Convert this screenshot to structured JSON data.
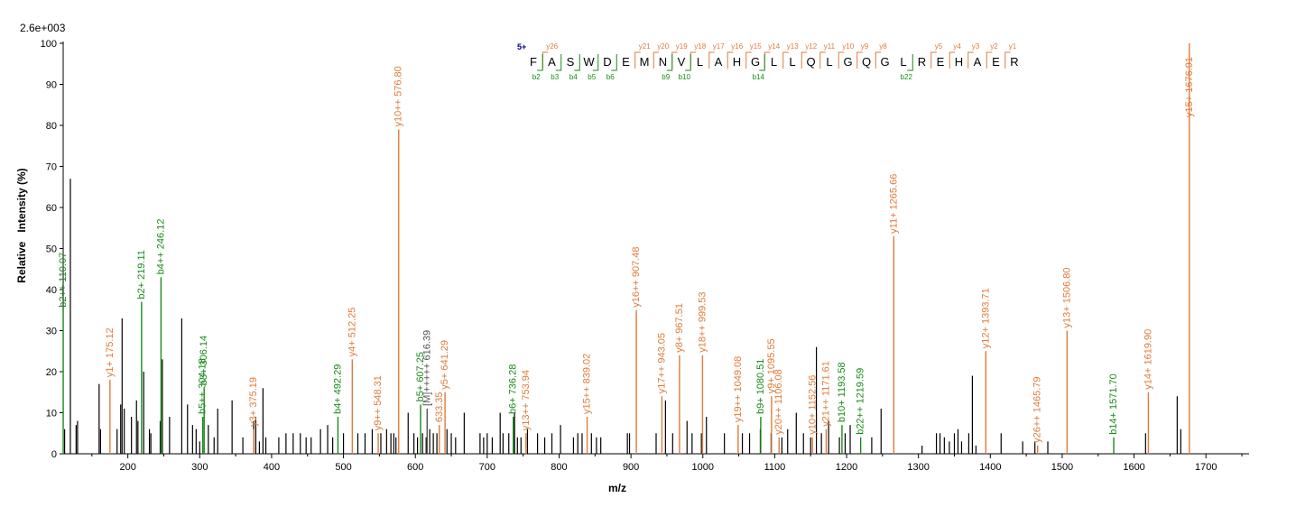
{
  "colors": {
    "y_ion": "#e07b39",
    "b_ion": "#1a8a1a",
    "unassigned": "#000000",
    "precursor": "#555555",
    "charge": "#000080"
  },
  "chart_data": {
    "type": "bar",
    "title": "",
    "scale_label": "2.6e+003",
    "xlabel": "m/z",
    "ylabel": "Relative   Intensity (%)",
    "xlim": [
      110,
      1760
    ],
    "ylim": [
      0,
      100
    ],
    "xticks": [
      200,
      300,
      400,
      500,
      600,
      700,
      800,
      900,
      1000,
      1100,
      1200,
      1300,
      1400,
      1500,
      1600,
      1700
    ],
    "yticks": [
      0,
      10,
      20,
      30,
      40,
      50,
      60,
      70,
      80,
      90,
      100
    ],
    "grid": false,
    "sequence": {
      "charge": "5+",
      "residues": [
        "F",
        "A",
        "S",
        "W",
        "D",
        "E",
        "M",
        "N",
        "V",
        "L",
        "A",
        "H",
        "G",
        "L",
        "L",
        "Q",
        "L",
        "G",
        "Q",
        "G",
        "L",
        "R",
        "E",
        "H",
        "A",
        "E",
        "R"
      ],
      "y_marks": [
        [
          "y26",
          1
        ],
        [
          "y21",
          6
        ],
        [
          "y20",
          7
        ],
        [
          "y19",
          8
        ],
        [
          "y18",
          9
        ],
        [
          "y17",
          10
        ],
        [
          "y16",
          11
        ],
        [
          "y15",
          12
        ],
        [
          "y14",
          13
        ],
        [
          "y13",
          14
        ],
        [
          "y12",
          15
        ],
        [
          "y11",
          16
        ],
        [
          "y10",
          17
        ],
        [
          "y9",
          18
        ],
        [
          "y8",
          19
        ],
        [
          "y5",
          22
        ],
        [
          "y4",
          23
        ],
        [
          "y3",
          24
        ],
        [
          "y2",
          25
        ],
        [
          "y1",
          26
        ]
      ],
      "b_marks": [
        [
          "b2",
          1
        ],
        [
          "b3",
          2
        ],
        [
          "b4",
          3
        ],
        [
          "b5",
          4
        ],
        [
          "b6",
          5
        ],
        [
          "b9",
          8
        ],
        [
          "b10",
          9
        ],
        [
          "b14",
          13
        ],
        [
          "b22",
          21
        ]
      ]
    },
    "labeled_peaks": [
      {
        "mz": 110.07,
        "y": 35,
        "ion": "b",
        "label": "b2++ 110.07"
      },
      {
        "mz": 175.12,
        "y": 18,
        "ion": "y",
        "label": "y1+ 175.12"
      },
      {
        "mz": 219.11,
        "y": 37,
        "ion": "b",
        "label": "b2+ 219.11"
      },
      {
        "mz": 246.12,
        "y": 43,
        "ion": "b",
        "label": "b4++ 246.12"
      },
      {
        "mz": 304.18,
        "y": 9,
        "ion": "b",
        "label": "b5++ 304.18"
      },
      {
        "mz": 306.14,
        "y": 16,
        "ion": "b",
        "label": "b3+ 306.14"
      },
      {
        "mz": 375.19,
        "y": 6,
        "ion": "y",
        "label": "y3+ 375.19"
      },
      {
        "mz": 492.29,
        "y": 9,
        "ion": "b",
        "label": "b4+ 492.29"
      },
      {
        "mz": 512.25,
        "y": 23,
        "ion": "y",
        "label": "y4+ 512.25"
      },
      {
        "mz": 548.31,
        "y": 5,
        "ion": "y",
        "label": "y9++ 548.31"
      },
      {
        "mz": 576.8,
        "y": 79,
        "ion": "y",
        "label": "y10++ 576.80"
      },
      {
        "mz": 607.25,
        "y": 12,
        "ion": "b",
        "label": "b5+ 607.25"
      },
      {
        "mz": 616.39,
        "y": 11,
        "ion": "p",
        "label": "[M]+++++ 616.39"
      },
      {
        "mz": 633.35,
        "y": 7,
        "ion": "y",
        "label": "633.35"
      },
      {
        "mz": 641.29,
        "y": 15,
        "ion": "y",
        "label": "y5+ 641.29"
      },
      {
        "mz": 736.28,
        "y": 9,
        "ion": "b",
        "label": "b6+ 736.28"
      },
      {
        "mz": 753.94,
        "y": 5,
        "ion": "y",
        "label": "y13++ 753.94"
      },
      {
        "mz": 839.02,
        "y": 9,
        "ion": "y",
        "label": "y15++ 839.02"
      },
      {
        "mz": 907.48,
        "y": 35,
        "ion": "y",
        "label": "y16++ 907.48"
      },
      {
        "mz": 943.05,
        "y": 14,
        "ion": "y",
        "label": "y17++ 943.05"
      },
      {
        "mz": 967.51,
        "y": 24,
        "ion": "y",
        "label": "y8+ 967.51"
      },
      {
        "mz": 999.53,
        "y": 24,
        "ion": "y",
        "label": "y18++ 999.53"
      },
      {
        "mz": 1049.08,
        "y": 7,
        "ion": "y",
        "label": "y19++ 1049.08"
      },
      {
        "mz": 1080.51,
        "y": 9,
        "ion": "b",
        "label": "b9+ 1080.51"
      },
      {
        "mz": 1095.55,
        "y": 14,
        "ion": "y",
        "label": "y9+ 1095.55"
      },
      {
        "mz": 1106.08,
        "y": 4,
        "ion": "y",
        "label": "y20++ 1106.08"
      },
      {
        "mz": 1152.56,
        "y": 4,
        "ion": "y",
        "label": "y10+ 1152.56"
      },
      {
        "mz": 1171.61,
        "y": 6,
        "ion": "y",
        "label": "y21++ 1171.61"
      },
      {
        "mz": 1193.58,
        "y": 7,
        "ion": "b",
        "label": "b10+ 1193.58"
      },
      {
        "mz": 1219.59,
        "y": 4,
        "ion": "b",
        "label": "b22++ 1219.59"
      },
      {
        "mz": 1265.66,
        "y": 53,
        "ion": "y",
        "label": "y11+ 1265.66"
      },
      {
        "mz": 1393.71,
        "y": 25,
        "ion": "y",
        "label": "y12+ 1393.71"
      },
      {
        "mz": 1465.79,
        "y": 2,
        "ion": "y",
        "label": "y26++ 1465.79"
      },
      {
        "mz": 1506.8,
        "y": 30,
        "ion": "y",
        "label": "y13+ 1506.80"
      },
      {
        "mz": 1571.7,
        "y": 4,
        "ion": "b",
        "label": "b14+ 1571.70"
      },
      {
        "mz": 1619.9,
        "y": 15,
        "ion": "y",
        "label": "y14+ 1619.90"
      },
      {
        "mz": 1676.91,
        "y": 100,
        "ion": "y",
        "label": "y15+ 1676.91"
      }
    ],
    "unlabeled_peaks": [
      [
        112,
        6
      ],
      [
        120,
        67
      ],
      [
        128,
        7
      ],
      [
        130,
        8
      ],
      [
        160,
        17
      ],
      [
        162,
        6
      ],
      [
        185,
        6
      ],
      [
        190,
        12
      ],
      [
        192,
        33
      ],
      [
        195,
        11
      ],
      [
        205,
        9
      ],
      [
        212,
        13
      ],
      [
        214,
        8
      ],
      [
        222,
        20
      ],
      [
        230,
        6
      ],
      [
        232,
        5
      ],
      [
        245,
        8
      ],
      [
        248,
        23
      ],
      [
        258,
        9
      ],
      [
        275,
        33
      ],
      [
        283,
        12
      ],
      [
        290,
        7
      ],
      [
        295,
        6
      ],
      [
        300,
        3
      ],
      [
        312,
        7
      ],
      [
        320,
        4
      ],
      [
        325,
        11
      ],
      [
        345,
        13
      ],
      [
        360,
        4
      ],
      [
        375,
        8
      ],
      [
        378,
        9
      ],
      [
        383,
        3
      ],
      [
        388,
        16
      ],
      [
        392,
        4
      ],
      [
        410,
        4
      ],
      [
        420,
        5
      ],
      [
        430,
        5
      ],
      [
        440,
        5
      ],
      [
        448,
        4
      ],
      [
        455,
        4
      ],
      [
        468,
        6
      ],
      [
        478,
        7
      ],
      [
        485,
        4
      ],
      [
        500,
        5
      ],
      [
        520,
        5
      ],
      [
        530,
        5
      ],
      [
        540,
        6
      ],
      [
        552,
        5
      ],
      [
        560,
        6
      ],
      [
        566,
        5
      ],
      [
        570,
        5
      ],
      [
        573,
        4
      ],
      [
        590,
        10
      ],
      [
        598,
        5
      ],
      [
        603,
        4
      ],
      [
        610,
        5
      ],
      [
        615,
        4
      ],
      [
        620,
        6
      ],
      [
        625,
        5
      ],
      [
        630,
        5
      ],
      [
        644,
        6
      ],
      [
        650,
        5
      ],
      [
        656,
        4
      ],
      [
        668,
        10
      ],
      [
        690,
        5
      ],
      [
        695,
        4
      ],
      [
        700,
        5
      ],
      [
        707,
        4
      ],
      [
        718,
        10
      ],
      [
        722,
        5
      ],
      [
        730,
        5
      ],
      [
        738,
        10
      ],
      [
        742,
        4
      ],
      [
        747,
        4
      ],
      [
        756,
        6
      ],
      [
        770,
        5
      ],
      [
        780,
        4
      ],
      [
        790,
        5
      ],
      [
        802,
        7
      ],
      [
        820,
        4
      ],
      [
        826,
        5
      ],
      [
        832,
        5
      ],
      [
        845,
        5
      ],
      [
        852,
        4
      ],
      [
        858,
        4
      ],
      [
        895,
        5
      ],
      [
        898,
        5
      ],
      [
        935,
        5
      ],
      [
        948,
        13
      ],
      [
        958,
        5
      ],
      [
        978,
        8
      ],
      [
        985,
        5
      ],
      [
        998,
        5
      ],
      [
        1005,
        9
      ],
      [
        1030,
        5
      ],
      [
        1055,
        5
      ],
      [
        1065,
        5
      ],
      [
        1080,
        6
      ],
      [
        1095,
        5
      ],
      [
        1110,
        4
      ],
      [
        1118,
        6
      ],
      [
        1130,
        10
      ],
      [
        1140,
        5
      ],
      [
        1150,
        4
      ],
      [
        1158,
        26
      ],
      [
        1165,
        5
      ],
      [
        1175,
        8
      ],
      [
        1190,
        4
      ],
      [
        1198,
        5
      ],
      [
        1205,
        7
      ],
      [
        1235,
        4
      ],
      [
        1248,
        11
      ],
      [
        1305,
        2
      ],
      [
        1325,
        5
      ],
      [
        1330,
        5
      ],
      [
        1336,
        4
      ],
      [
        1343,
        3
      ],
      [
        1350,
        5
      ],
      [
        1355,
        6
      ],
      [
        1360,
        3
      ],
      [
        1370,
        5
      ],
      [
        1375,
        19
      ],
      [
        1380,
        2
      ],
      [
        1415,
        5
      ],
      [
        1445,
        3
      ],
      [
        1462,
        3
      ],
      [
        1480,
        3
      ],
      [
        1616,
        5
      ],
      [
        1660,
        14
      ],
      [
        1665,
        6
      ]
    ]
  }
}
